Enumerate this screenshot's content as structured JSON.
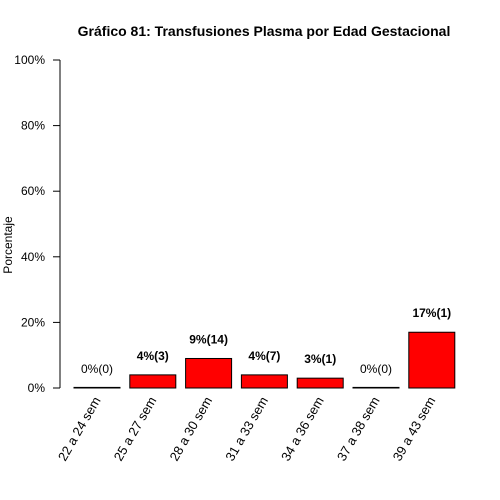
{
  "chart_data": {
    "type": "bar",
    "title": "Gráfico 81: Transfusiones Plasma por Edad Gestacional",
    "xlabel": "",
    "ylabel": "Porcentaje",
    "ylim": [
      0,
      100
    ],
    "yticks": [
      "0%",
      "20%",
      "40%",
      "60%",
      "80%",
      "100%"
    ],
    "ytick_values": [
      0,
      20,
      40,
      60,
      80,
      100
    ],
    "categories": [
      "22 a 24 sem",
      "25 a 27 sem",
      "28 a 30 sem",
      "31 a 33 sem",
      "34 a 36 sem",
      "37 a 38 sem",
      "39 a 43 sem"
    ],
    "values": [
      0,
      4,
      9,
      4,
      3,
      0,
      17
    ],
    "data_labels": [
      "0%(0)",
      "4%(3)",
      "9%(14)",
      "4%(7)",
      "3%(1)",
      "0%(0)",
      "17%(1)"
    ],
    "data_label_bold": [
      false,
      true,
      true,
      true,
      true,
      false,
      true
    ],
    "bar_color": "#ff0000",
    "bar_border_color": "#000000",
    "grid": false,
    "legend": "none"
  }
}
